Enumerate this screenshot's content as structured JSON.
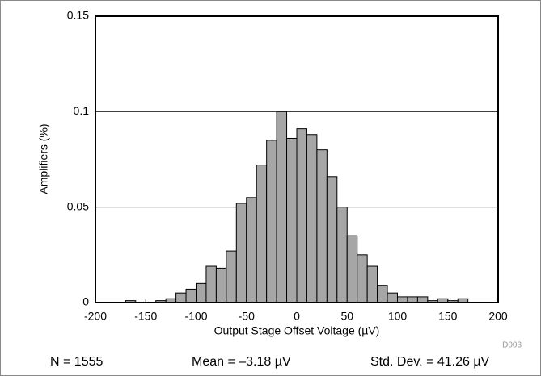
{
  "chart_data": {
    "type": "histogram",
    "xlabel": "Output Stage Offset Voltage (µV)",
    "ylabel": "Amplifiers (%)",
    "bins": [
      -200,
      -190,
      -180,
      -170,
      -160,
      -150,
      -140,
      -130,
      -120,
      -110,
      -100,
      -90,
      -80,
      -70,
      -60,
      -50,
      -40,
      -30,
      -20,
      -10,
      0,
      10,
      20,
      30,
      40,
      50,
      60,
      70,
      80,
      90,
      100,
      110,
      120,
      130,
      140,
      150,
      160,
      170,
      180,
      190,
      200
    ],
    "values": [
      0,
      0,
      0,
      0.001,
      0,
      0,
      0.001,
      0.002,
      0.005,
      0.007,
      0.01,
      0.019,
      0.018,
      0.027,
      0.052,
      0.055,
      0.072,
      0.085,
      0.1,
      0.086,
      0.091,
      0.088,
      0.08,
      0.066,
      0.05,
      0.035,
      0.025,
      0.019,
      0.009,
      0.005,
      0.003,
      0.003,
      0.003,
      0.001,
      0.002,
      0.001,
      0.002,
      0,
      0,
      0
    ],
    "color": "#a6a6a6",
    "xlim": [
      -200,
      200
    ],
    "xticks": [
      -200,
      -150,
      -100,
      -50,
      0,
      50,
      100,
      150,
      200
    ],
    "ylim": [
      0,
      0.15
    ],
    "yticks": [
      0,
      0.05,
      0.1,
      0.15
    ],
    "grid": true,
    "annotations": [
      "D003",
      "N = 1555",
      "Mean = –3.18 µV",
      "Std. Dev. = 41.26 µV"
    ]
  }
}
